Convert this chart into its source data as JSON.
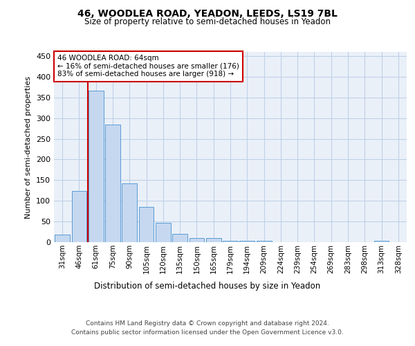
{
  "title1": "46, WOODLEA ROAD, YEADON, LEEDS, LS19 7BL",
  "title2": "Size of property relative to semi-detached houses in Yeadon",
  "xlabel": "Distribution of semi-detached houses by size in Yeadon",
  "ylabel": "Number of semi-detached properties",
  "bin_labels": [
    "31sqm",
    "46sqm",
    "61sqm",
    "75sqm",
    "90sqm",
    "105sqm",
    "120sqm",
    "135sqm",
    "150sqm",
    "165sqm",
    "179sqm",
    "194sqm",
    "209sqm",
    "224sqm",
    "239sqm",
    "254sqm",
    "269sqm",
    "283sqm",
    "298sqm",
    "313sqm",
    "328sqm"
  ],
  "bar_values": [
    19,
    124,
    367,
    284,
    142,
    86,
    47,
    20,
    10,
    10,
    4,
    4,
    4,
    0,
    0,
    0,
    0,
    0,
    0,
    4,
    0
  ],
  "bar_color": "#c5d8f0",
  "bar_edge_color": "#5b9bd5",
  "vline_color": "#cc0000",
  "annotation_text": "46 WOODLEA ROAD: 64sqm\n← 16% of semi-detached houses are smaller (176)\n83% of semi-detached houses are larger (918) →",
  "annotation_box_color": "#cc0000",
  "annotation_text_color": "#000000",
  "ylim": [
    0,
    460
  ],
  "yticks": [
    0,
    50,
    100,
    150,
    200,
    250,
    300,
    350,
    400,
    450
  ],
  "footer1": "Contains HM Land Registry data © Crown copyright and database right 2024.",
  "footer2": "Contains public sector information licensed under the Open Government Licence v3.0.",
  "bg_color": "#ffffff",
  "grid_color": "#c0d0e8",
  "plot_bg_color": "#eaf0f8"
}
